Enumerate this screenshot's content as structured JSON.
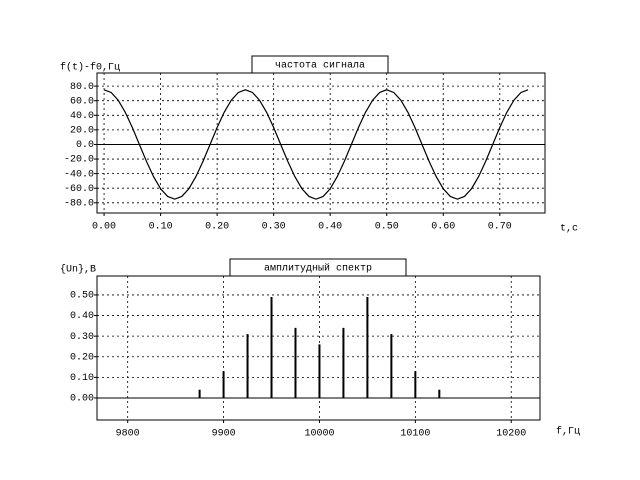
{
  "chart_data": [
    {
      "type": "line",
      "title": "частота сигнала",
      "ylabel": "f(t)-f0,Гц",
      "xlabel": "t,с",
      "x": [
        0,
        0.0125,
        0.025,
        0.0375,
        0.05,
        0.0625,
        0.075,
        0.0875,
        0.1,
        0.1125,
        0.125,
        0.1375,
        0.15,
        0.1625,
        0.175,
        0.1875,
        0.2,
        0.2125,
        0.225,
        0.2375,
        0.25,
        0.2625,
        0.275,
        0.2875,
        0.3,
        0.3125,
        0.325,
        0.3375,
        0.35,
        0.3625,
        0.375,
        0.3875,
        0.4,
        0.4125,
        0.425,
        0.4375,
        0.45,
        0.4625,
        0.475,
        0.4875,
        0.5,
        0.5125,
        0.525,
        0.5375,
        0.55,
        0.5625,
        0.575,
        0.5875,
        0.6,
        0.6125,
        0.625,
        0.6375,
        0.65,
        0.6625,
        0.675,
        0.6875,
        0.7,
        0.7125,
        0.725,
        0.7375,
        0.75
      ],
      "values": [
        75,
        71.3,
        60.7,
        44.1,
        23.2,
        0,
        -23.2,
        -44.1,
        -60.7,
        -71.3,
        -75,
        -71.3,
        -60.7,
        -44.1,
        -23.2,
        0,
        23.2,
        44.1,
        60.7,
        71.3,
        75,
        71.3,
        60.7,
        44.1,
        23.2,
        0,
        -23.2,
        -44.1,
        -60.7,
        -71.3,
        -75,
        -71.3,
        -60.7,
        -44.1,
        -23.2,
        0,
        23.2,
        44.1,
        60.7,
        71.3,
        75,
        71.3,
        60.7,
        44.1,
        23.2,
        0,
        -23.2,
        -44.1,
        -60.7,
        -71.3,
        -75,
        -71.3,
        -60.7,
        -44.1,
        -23.2,
        0,
        23.2,
        44.1,
        60.7,
        71.3,
        75
      ],
      "color": "#000000",
      "xlim": [
        -0.0125,
        0.78
      ],
      "ylim": [
        -94,
        98
      ],
      "xticks": [
        {
          "value": 0,
          "label": "0.00"
        },
        {
          "value": 0.1,
          "label": "0.10"
        },
        {
          "value": 0.2,
          "label": "0.20"
        },
        {
          "value": 0.3,
          "label": "0.30"
        },
        {
          "value": 0.4,
          "label": "0.40"
        },
        {
          "value": 0.5,
          "label": "0.50"
        },
        {
          "value": 0.6,
          "label": "0.60"
        },
        {
          "value": 0.7,
          "label": "0.70"
        }
      ],
      "yticks": [
        {
          "value": -80,
          "label": "-80.0"
        },
        {
          "value": -60,
          "label": "-60.0"
        },
        {
          "value": -40,
          "label": "-40.0"
        },
        {
          "value": -20,
          "label": "-20.0"
        },
        {
          "value": 0,
          "label": "0.0"
        },
        {
          "value": 20,
          "label": "20.0"
        },
        {
          "value": 40,
          "label": "40.0"
        },
        {
          "value": 60,
          "label": "60.0"
        },
        {
          "value": 80,
          "label": "80.0"
        }
      ],
      "grid": true
    },
    {
      "type": "stem",
      "title": "амплитудный спектр",
      "ylabel": "{Un},B",
      "xlabel": "f,Гц",
      "x": [
        9875,
        9900,
        9925,
        9950,
        9975,
        10000,
        10025,
        10050,
        10075,
        10100,
        10125
      ],
      "values": [
        0.04,
        0.13,
        0.31,
        0.49,
        0.34,
        0.26,
        0.34,
        0.49,
        0.31,
        0.13,
        0.04
      ],
      "color": "#000000",
      "xlim": [
        9768,
        10230
      ],
      "ylim": [
        -0.107,
        0.592
      ],
      "xticks": [
        9800,
        9900,
        10000,
        10100,
        10200
      ],
      "yticks": [
        {
          "value": 0,
          "label": "0.00"
        },
        {
          "value": 0.1,
          "label": "0.10"
        },
        {
          "value": 0.2,
          "label": "0.20"
        },
        {
          "value": 0.3,
          "label": "0.30"
        },
        {
          "value": 0.4,
          "label": "0.40"
        },
        {
          "value": 0.5,
          "label": "0.50"
        }
      ],
      "grid": true
    }
  ]
}
